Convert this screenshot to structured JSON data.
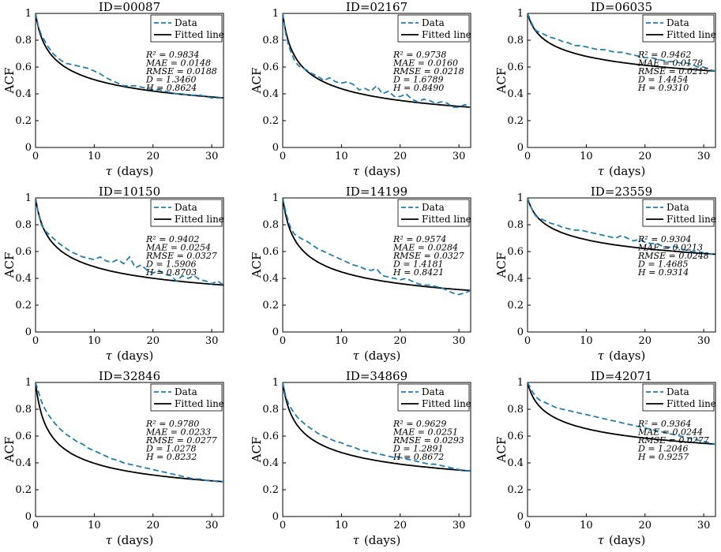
{
  "colors": {
    "data": "#1f7fb4",
    "fit": "#000000"
  },
  "figure": {
    "ylabel": "ACF",
    "xlabel_symbol": "τ",
    "xlabel_unit": "(days)",
    "legend": {
      "data": "Data",
      "fit": "Fitted line"
    }
  },
  "chart_data": [
    {
      "type": "line",
      "title": "ID=00087",
      "xlim": [
        0,
        32
      ],
      "ylim": [
        0,
        1
      ],
      "xticks": [
        "0",
        "10",
        "20",
        "30"
      ],
      "yticks": [
        "0",
        "0.2",
        "0.4",
        "0.6",
        "0.8",
        "1"
      ],
      "fit": {
        "D": 1.346
      },
      "data_x": [
        0,
        0.5,
        1,
        1.5,
        2,
        2.5,
        3,
        3.5,
        4,
        5,
        6,
        7,
        8,
        9,
        10,
        11,
        12,
        13,
        14,
        15,
        16,
        17,
        18,
        19,
        20,
        21,
        22,
        23,
        24,
        25,
        26,
        27,
        28,
        29,
        30,
        31,
        32
      ],
      "data_y": [
        1,
        0.9,
        0.84,
        0.8,
        0.76,
        0.73,
        0.7,
        0.68,
        0.66,
        0.63,
        0.62,
        0.61,
        0.6,
        0.59,
        0.57,
        0.55,
        0.52,
        0.5,
        0.48,
        0.46,
        0.46,
        0.46,
        0.45,
        0.44,
        0.43,
        0.43,
        0.42,
        0.41,
        0.4,
        0.4,
        0.39,
        0.39,
        0.39,
        0.38,
        0.37,
        0.37,
        0.37
      ],
      "stats": {
        "R2": "R² = 0.9834",
        "MAE": "MAE = 0.0148",
        "RMSE": "RMSE = 0.0188",
        "D": "D = 1.3460",
        "H": "H = 0.8624"
      }
    },
    {
      "type": "line",
      "title": "ID=02167",
      "xlim": [
        0,
        32
      ],
      "ylim": [
        0,
        1
      ],
      "xticks": [
        "0",
        "10",
        "20",
        "30"
      ],
      "yticks": [
        "0",
        "0.2",
        "0.4",
        "0.6",
        "0.8",
        "1"
      ],
      "fit": {
        "D": 1.6789
      },
      "data_x": [
        0,
        0.5,
        1,
        1.5,
        2,
        2.5,
        3,
        4,
        5,
        6,
        7,
        8,
        9,
        10,
        11,
        12,
        13,
        14,
        15,
        16,
        17,
        18,
        19,
        20,
        21,
        22,
        23,
        24,
        25,
        26,
        27,
        28,
        29,
        30,
        31,
        32
      ],
      "data_y": [
        1,
        0.85,
        0.76,
        0.7,
        0.65,
        0.62,
        0.6,
        0.58,
        0.55,
        0.53,
        0.5,
        0.52,
        0.49,
        0.48,
        0.49,
        0.47,
        0.43,
        0.44,
        0.42,
        0.46,
        0.4,
        0.42,
        0.38,
        0.38,
        0.4,
        0.36,
        0.34,
        0.36,
        0.35,
        0.33,
        0.34,
        0.33,
        0.3,
        0.3,
        0.32,
        0.3
      ],
      "stats": {
        "R2": "R² = 0.9738",
        "MAE": "MAE = 0.0160",
        "RMSE": "RMSE = 0.0218",
        "D": "D = 1.6789",
        "H": "H = 0.8490"
      }
    },
    {
      "type": "line",
      "title": "ID=06035",
      "xlim": [
        0,
        32
      ],
      "ylim": [
        0,
        1
      ],
      "xticks": [
        "0",
        "10",
        "20",
        "30"
      ],
      "yticks": [
        "0",
        "0.2",
        "0.4",
        "0.6",
        "0.8",
        "1"
      ],
      "fit": {
        "D": 1.4454
      },
      "data_x": [
        0,
        0.5,
        1,
        1.5,
        2,
        3,
        4,
        5,
        6,
        7,
        8,
        9,
        10,
        11,
        12,
        13,
        14,
        15,
        16,
        17,
        18,
        19,
        20,
        21,
        22,
        23,
        24,
        25,
        26,
        27,
        28,
        29,
        30,
        31,
        32
      ],
      "data_y": [
        1,
        0.95,
        0.9,
        0.87,
        0.86,
        0.84,
        0.82,
        0.81,
        0.79,
        0.78,
        0.76,
        0.76,
        0.75,
        0.74,
        0.73,
        0.73,
        0.72,
        0.71,
        0.71,
        0.7,
        0.69,
        0.68,
        0.67,
        0.67,
        0.66,
        0.65,
        0.64,
        0.64,
        0.63,
        0.63,
        0.62,
        0.6,
        0.6,
        0.58,
        0.57
      ],
      "stats": {
        "R2": "R² = 0.9462",
        "MAE": "MAE = 0.0178",
        "RMSE": "RMSE = 0.0215",
        "D": "D = 1.4454",
        "H": "H = 0.9310"
      }
    },
    {
      "type": "line",
      "title": "ID=10150",
      "xlim": [
        0,
        32
      ],
      "ylim": [
        0,
        1
      ],
      "xticks": [
        "0",
        "10",
        "20",
        "30"
      ],
      "yticks": [
        "0",
        "0.2",
        "0.4",
        "0.6",
        "0.8",
        "1"
      ],
      "fit": {
        "D": 1.5906
      },
      "data_x": [
        0,
        0.5,
        1,
        1.5,
        2,
        2.5,
        3,
        4,
        5,
        6,
        7,
        8,
        9,
        10,
        11,
        12,
        13,
        14,
        15,
        16,
        17,
        18,
        19,
        20,
        21,
        22,
        23,
        24,
        25,
        26,
        27,
        28,
        29,
        30,
        31,
        32
      ],
      "data_y": [
        1,
        0.88,
        0.8,
        0.76,
        0.74,
        0.72,
        0.7,
        0.66,
        0.63,
        0.6,
        0.58,
        0.56,
        0.55,
        0.54,
        0.56,
        0.53,
        0.52,
        0.54,
        0.51,
        0.56,
        0.48,
        0.5,
        0.46,
        0.44,
        0.46,
        0.43,
        0.42,
        0.38,
        0.42,
        0.4,
        0.42,
        0.39,
        0.38,
        0.36,
        0.38,
        0.35
      ],
      "stats": {
        "R2": "R² = 0.9402",
        "MAE": "MAE = 0.0254",
        "RMSE": "RMSE = 0.0327",
        "D": "D = 1.5906",
        "H": "H = 0.8703"
      }
    },
    {
      "type": "line",
      "title": "ID=14199",
      "xlim": [
        0,
        32
      ],
      "ylim": [
        0,
        1
      ],
      "xticks": [
        "0",
        "10",
        "20",
        "30"
      ],
      "yticks": [
        "0",
        "0.2",
        "0.4",
        "0.6",
        "0.8",
        "1"
      ],
      "fit": {
        "D": 1.4181
      },
      "data_x": [
        0,
        0.5,
        1,
        1.5,
        2,
        3,
        4,
        5,
        6,
        7,
        8,
        9,
        10,
        11,
        12,
        13,
        14,
        15,
        16,
        17,
        18,
        19,
        20,
        21,
        22,
        23,
        24,
        25,
        26,
        27,
        28,
        29,
        30,
        31,
        32
      ],
      "data_y": [
        1,
        0.9,
        0.82,
        0.76,
        0.73,
        0.7,
        0.68,
        0.65,
        0.62,
        0.6,
        0.58,
        0.56,
        0.54,
        0.52,
        0.5,
        0.49,
        0.47,
        0.46,
        0.47,
        0.42,
        0.41,
        0.4,
        0.39,
        0.4,
        0.38,
        0.36,
        0.35,
        0.35,
        0.34,
        0.33,
        0.31,
        0.29,
        0.28,
        0.29,
        0.31
      ],
      "stats": {
        "R2": "R² = 0.9574",
        "MAE": "MAE = 0.0284",
        "RMSE": "RMSE = 0.0327",
        "D": "D = 1.4181",
        "H": "H = 0.8421"
      }
    },
    {
      "type": "line",
      "title": "ID=23559",
      "xlim": [
        0,
        32
      ],
      "ylim": [
        0,
        1
      ],
      "xticks": [
        "0",
        "10",
        "20",
        "30"
      ],
      "yticks": [
        "0",
        "0.2",
        "0.4",
        "0.6",
        "0.8",
        "1"
      ],
      "fit": {
        "D": 1.4685
      },
      "data_x": [
        0,
        0.5,
        1,
        1.5,
        2,
        3,
        4,
        5,
        6,
        7,
        8,
        9,
        10,
        11,
        12,
        13,
        14,
        15,
        16,
        17,
        18,
        19,
        20,
        21,
        22,
        23,
        24,
        25,
        26,
        27,
        28,
        29,
        30,
        31,
        32
      ],
      "data_y": [
        1,
        0.94,
        0.89,
        0.86,
        0.85,
        0.83,
        0.81,
        0.8,
        0.78,
        0.77,
        0.76,
        0.76,
        0.75,
        0.74,
        0.73,
        0.72,
        0.71,
        0.7,
        0.72,
        0.7,
        0.68,
        0.69,
        0.67,
        0.66,
        0.66,
        0.64,
        0.63,
        0.64,
        0.62,
        0.61,
        0.6,
        0.6,
        0.59,
        0.58,
        0.58
      ],
      "stats": {
        "R2": "R² = 0.9304",
        "MAE": "MAE = 0.0213",
        "RMSE": "RMSE = 0.0248",
        "D": "D = 1.4685",
        "H": "H = 0.9314"
      }
    },
    {
      "type": "line",
      "title": "ID=32846",
      "xlim": [
        0,
        32
      ],
      "ylim": [
        0,
        1
      ],
      "xticks": [
        "0",
        "10",
        "20",
        "30"
      ],
      "yticks": [
        "0",
        "0.2",
        "0.4",
        "0.6",
        "0.8",
        "1"
      ],
      "fit": {
        "D": 1.0278
      },
      "data_x": [
        0,
        0.5,
        1,
        1.5,
        2,
        2.5,
        3,
        4,
        5,
        6,
        7,
        8,
        9,
        10,
        11,
        12,
        13,
        14,
        15,
        16,
        17,
        18,
        19,
        20,
        21,
        22,
        23,
        24,
        25,
        26,
        27,
        28,
        29,
        30,
        31,
        32
      ],
      "data_y": [
        1,
        0.93,
        0.86,
        0.81,
        0.77,
        0.74,
        0.71,
        0.66,
        0.62,
        0.59,
        0.56,
        0.54,
        0.51,
        0.49,
        0.47,
        0.45,
        0.43,
        0.42,
        0.4,
        0.39,
        0.38,
        0.37,
        0.36,
        0.35,
        0.34,
        0.33,
        0.32,
        0.31,
        0.3,
        0.29,
        0.28,
        0.28,
        0.27,
        0.27,
        0.26,
        0.26
      ],
      "stats": {
        "R2": "R² = 0.9780",
        "MAE": "MAE = 0.0233",
        "RMSE": "RMSE = 0.0277",
        "D": "D = 1.0278",
        "H": "H = 0.8232"
      }
    },
    {
      "type": "line",
      "title": "ID=34869",
      "xlim": [
        0,
        32
      ],
      "ylim": [
        0,
        1
      ],
      "xticks": [
        "0",
        "10",
        "20",
        "30"
      ],
      "yticks": [
        "0",
        "0.2",
        "0.4",
        "0.6",
        "0.8",
        "1"
      ],
      "fit": {
        "D": 1.2891
      },
      "data_x": [
        0,
        0.5,
        1,
        1.5,
        2,
        2.5,
        3,
        4,
        5,
        6,
        7,
        8,
        9,
        10,
        11,
        12,
        13,
        14,
        15,
        16,
        17,
        18,
        19,
        20,
        21,
        22,
        23,
        24,
        25,
        26,
        27,
        28,
        29,
        30,
        31,
        32
      ],
      "data_y": [
        1,
        0.9,
        0.84,
        0.8,
        0.77,
        0.74,
        0.72,
        0.68,
        0.65,
        0.62,
        0.6,
        0.58,
        0.56,
        0.55,
        0.53,
        0.52,
        0.5,
        0.49,
        0.48,
        0.47,
        0.46,
        0.45,
        0.44,
        0.44,
        0.43,
        0.42,
        0.41,
        0.4,
        0.39,
        0.39,
        0.38,
        0.37,
        0.36,
        0.35,
        0.34,
        0.34
      ],
      "stats": {
        "R2": "R² = 0.9629",
        "MAE": "MAE = 0.0251",
        "RMSE": "RMSE = 0.0293",
        "D": "D = 1.2891",
        "H": "H = 0.8672"
      }
    },
    {
      "type": "line",
      "title": "ID=42071",
      "xlim": [
        0,
        32
      ],
      "ylim": [
        0,
        1
      ],
      "xticks": [
        "0",
        "10",
        "20",
        "30"
      ],
      "yticks": [
        "0",
        "0.2",
        "0.4",
        "0.6",
        "0.8",
        "1"
      ],
      "fit": {
        "D": 1.2046
      },
      "data_x": [
        0,
        0.5,
        1,
        1.5,
        2,
        3,
        4,
        5,
        6,
        7,
        8,
        9,
        10,
        11,
        12,
        13,
        14,
        15,
        16,
        17,
        18,
        19,
        20,
        21,
        22,
        23,
        24,
        25,
        26,
        27,
        28,
        29,
        30,
        31,
        32
      ],
      "data_y": [
        1,
        0.96,
        0.92,
        0.89,
        0.87,
        0.85,
        0.83,
        0.81,
        0.8,
        0.79,
        0.78,
        0.77,
        0.76,
        0.75,
        0.74,
        0.73,
        0.72,
        0.71,
        0.7,
        0.69,
        0.68,
        0.67,
        0.66,
        0.65,
        0.64,
        0.63,
        0.62,
        0.61,
        0.6,
        0.59,
        0.58,
        0.57,
        0.56,
        0.55,
        0.54
      ],
      "stats": {
        "R2": "R² = 0.9364",
        "MAE": "MAE = 0.0244",
        "RMSE": "RMSE = 0.0277",
        "D": "D = 1.2046",
        "H": "H = 0.9257"
      }
    }
  ]
}
